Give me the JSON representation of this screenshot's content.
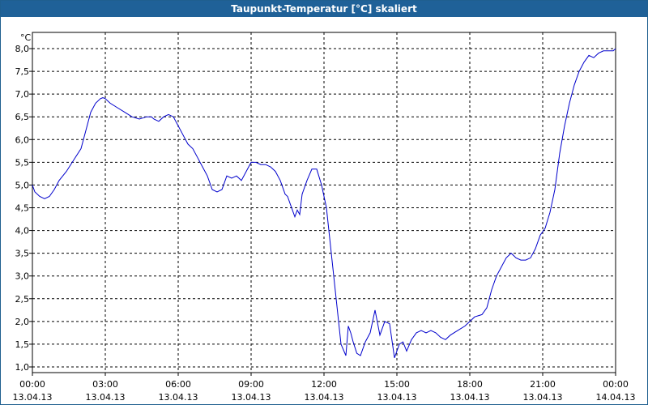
{
  "window": {
    "title": "Taupunkt-Temperatur [°C] skaliert"
  },
  "chart_data": {
    "type": "line",
    "title": "Taupunkt-Temperatur [°C] skaliert",
    "ylabel": "°C",
    "xlabel": "",
    "ylim": [
      1.0,
      8.0
    ],
    "xlim": [
      0,
      24
    ],
    "grid": true,
    "y_ticks": [
      "1,0",
      "1,5",
      "2,0",
      "2,5",
      "3,0",
      "3,5",
      "4,0",
      "4,5",
      "5,0",
      "5,5",
      "6,0",
      "6,5",
      "7,0",
      "7,5",
      "8,0"
    ],
    "x_ticks": [
      {
        "time": "00:00",
        "date": "13.04.13"
      },
      {
        "time": "03:00",
        "date": "13.04.13"
      },
      {
        "time": "06:00",
        "date": "13.04.13"
      },
      {
        "time": "09:00",
        "date": "13.04.13"
      },
      {
        "time": "12:00",
        "date": "13.04.13"
      },
      {
        "time": "15:00",
        "date": "13.04.13"
      },
      {
        "time": "18:00",
        "date": "13.04.13"
      },
      {
        "time": "21:00",
        "date": "13.04.13"
      },
      {
        "time": "00:00",
        "date": "14.04.13"
      }
    ],
    "colors": {
      "line": "#0000cc",
      "grid": "#000000",
      "titlebar": "#1f6198"
    },
    "series": [
      {
        "x": [
          0,
          0.1,
          0.3,
          0.5,
          0.7,
          0.9,
          1.1,
          1.4,
          1.7,
          2.0,
          2.2,
          2.4,
          2.6,
          2.8,
          2.9,
          3.0,
          3.2,
          3.5,
          3.8,
          4.1,
          4.4,
          4.7,
          4.9,
          5.0,
          5.2,
          5.4,
          5.6,
          5.8,
          6.0,
          6.2,
          6.4,
          6.6,
          6.8,
          6.9,
          7.0,
          7.2,
          7.4,
          7.6,
          7.8,
          8.0,
          8.2,
          8.4,
          8.6,
          8.8,
          9.0,
          9.2,
          9.4,
          9.6,
          9.8,
          10.0,
          10.2,
          10.4,
          10.5,
          10.6,
          10.8,
          10.9,
          11.0,
          11.1,
          11.3,
          11.5,
          11.7,
          11.9,
          12.1,
          12.3,
          12.5,
          12.7,
          12.9,
          13.0,
          13.1,
          13.2,
          13.35,
          13.5,
          13.7,
          13.9,
          14.1,
          14.3,
          14.5,
          14.7,
          14.9,
          15.1,
          15.25,
          15.4,
          15.6,
          15.8,
          16.0,
          16.2,
          16.4,
          16.6,
          16.8,
          17.0,
          17.2,
          17.5,
          17.8,
          18.0,
          18.2,
          18.5,
          18.7,
          18.9,
          19.1,
          19.3,
          19.5,
          19.7,
          19.9,
          20.1,
          20.3,
          20.5,
          20.7,
          20.9,
          21.1,
          21.3,
          21.5,
          21.7,
          21.9,
          22.1,
          22.3,
          22.5,
          22.7,
          22.9,
          23.1,
          23.3,
          23.5,
          23.7,
          23.9,
          24.0
        ],
        "y": [
          5.0,
          4.85,
          4.75,
          4.7,
          4.75,
          4.9,
          5.1,
          5.3,
          5.55,
          5.8,
          6.2,
          6.6,
          6.8,
          6.9,
          6.92,
          6.9,
          6.8,
          6.7,
          6.6,
          6.5,
          6.45,
          6.5,
          6.5,
          6.45,
          6.4,
          6.5,
          6.55,
          6.5,
          6.3,
          6.1,
          5.9,
          5.8,
          5.6,
          5.5,
          5.4,
          5.2,
          4.9,
          4.85,
          4.9,
          5.2,
          5.15,
          5.2,
          5.1,
          5.3,
          5.5,
          5.5,
          5.45,
          5.45,
          5.4,
          5.3,
          5.1,
          4.8,
          4.75,
          4.6,
          4.3,
          4.45,
          4.35,
          4.8,
          5.1,
          5.35,
          5.35,
          5.0,
          4.5,
          3.5,
          2.5,
          1.5,
          1.25,
          1.9,
          1.75,
          1.55,
          1.3,
          1.25,
          1.55,
          1.75,
          2.25,
          1.7,
          2.0,
          1.95,
          1.2,
          1.5,
          1.55,
          1.35,
          1.6,
          1.75,
          1.8,
          1.75,
          1.8,
          1.75,
          1.65,
          1.6,
          1.7,
          1.8,
          1.9,
          2.0,
          2.1,
          2.15,
          2.3,
          2.7,
          3.0,
          3.2,
          3.4,
          3.5,
          3.4,
          3.35,
          3.35,
          3.4,
          3.6,
          3.9,
          4.05,
          4.4,
          4.9,
          5.7,
          6.3,
          6.8,
          7.2,
          7.5,
          7.7,
          7.85,
          7.8,
          7.9,
          7.95,
          7.95,
          7.95,
          8.0
        ]
      }
    ]
  }
}
